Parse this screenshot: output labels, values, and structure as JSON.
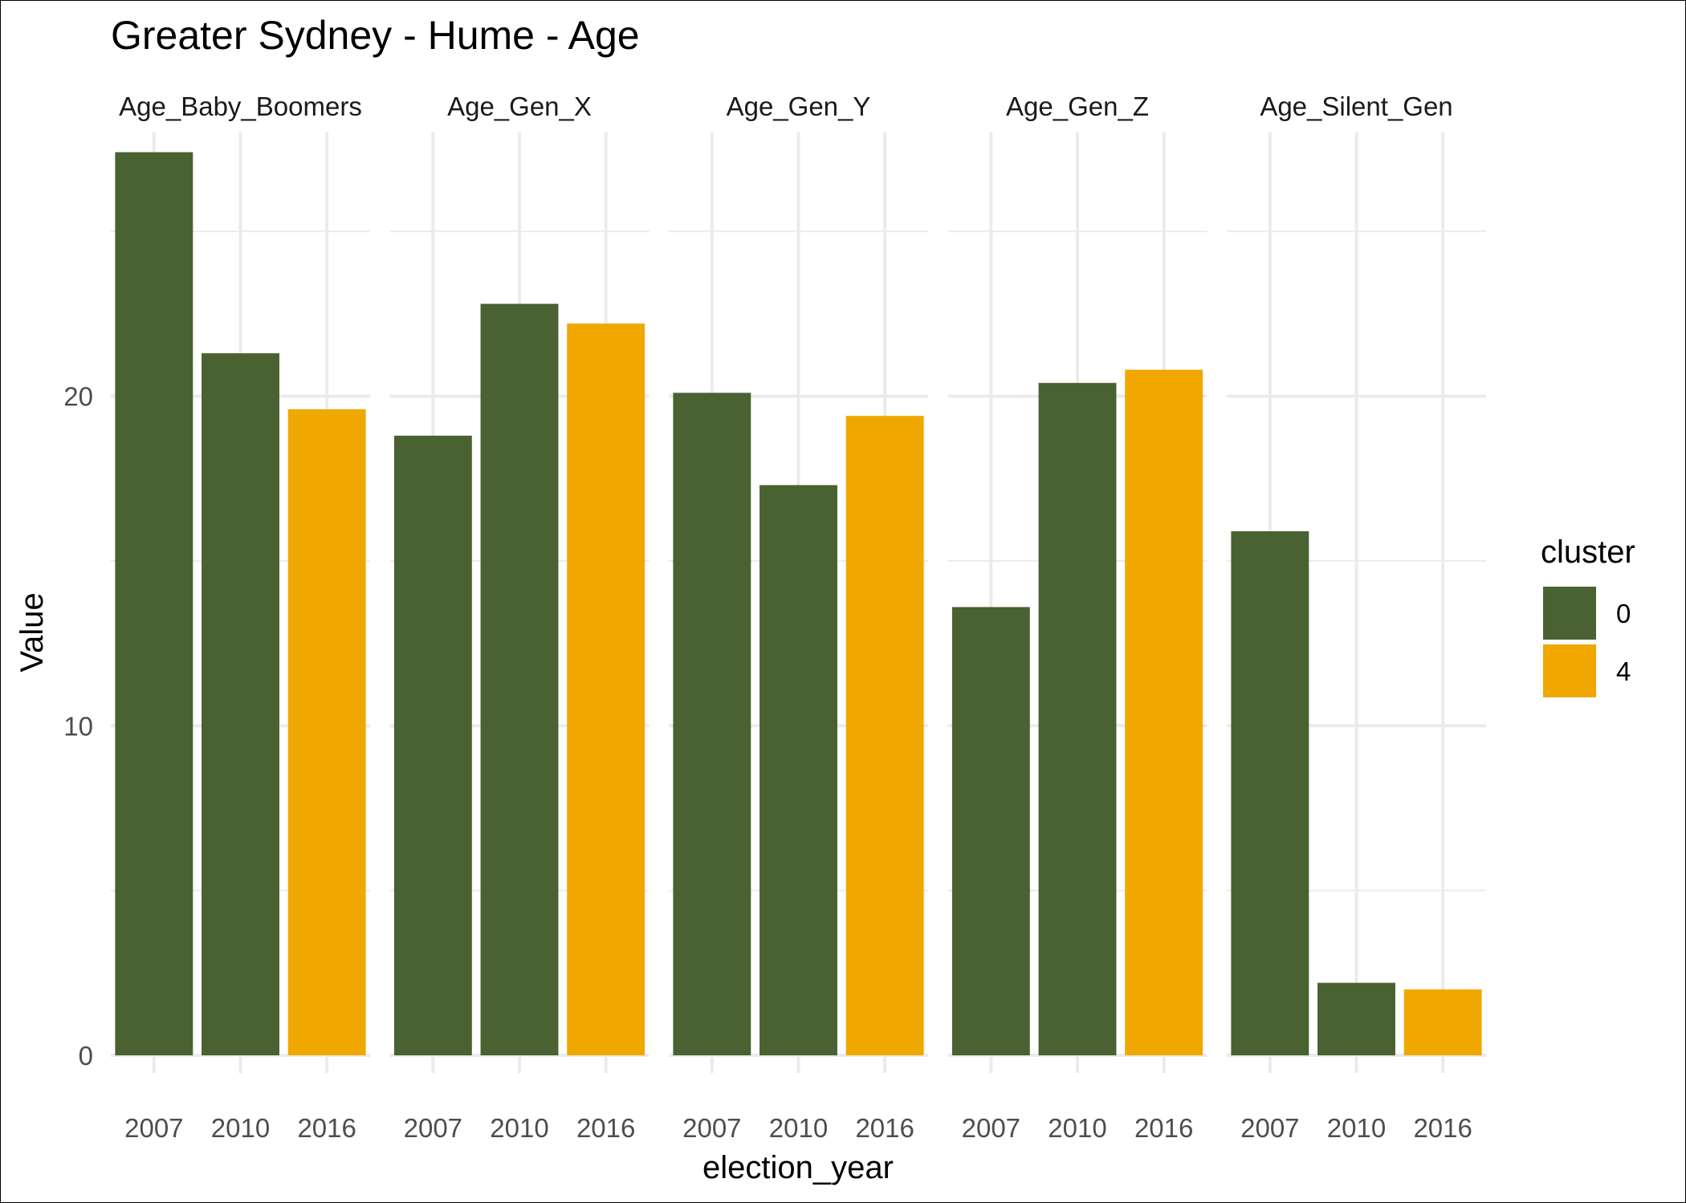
{
  "chart_data": {
    "type": "bar",
    "title": "Greater Sydney - Hume - Age",
    "xlabel": "election_year",
    "ylabel": "Value",
    "ylim": [
      0,
      28
    ],
    "y_ticks": [
      0,
      10,
      20
    ],
    "grid": true,
    "facet_by": "variable",
    "legend": {
      "title": "cluster",
      "position": "right",
      "entries": [
        {
          "label": "0",
          "color": "#4a6132"
        },
        {
          "label": "4",
          "color": "#f0a800"
        }
      ]
    },
    "categories": [
      "2007",
      "2010",
      "2016"
    ],
    "panels": [
      {
        "label": "Age_Baby_Boomers",
        "values": [
          27.4,
          21.3,
          19.6
        ],
        "clusters": [
          "0",
          "0",
          "4"
        ]
      },
      {
        "label": "Age_Gen_X",
        "values": [
          18.8,
          22.8,
          22.2
        ],
        "clusters": [
          "0",
          "0",
          "4"
        ]
      },
      {
        "label": "Age_Gen_Y",
        "values": [
          20.1,
          17.3,
          19.4
        ],
        "clusters": [
          "0",
          "0",
          "4"
        ]
      },
      {
        "label": "Age_Gen_Z",
        "values": [
          13.6,
          20.4,
          20.8
        ],
        "clusters": [
          "0",
          "0",
          "4"
        ]
      },
      {
        "label": "Age_Silent_Gen",
        "values": [
          15.9,
          2.2,
          2.0
        ],
        "clusters": [
          "0",
          "0",
          "4"
        ]
      }
    ]
  }
}
